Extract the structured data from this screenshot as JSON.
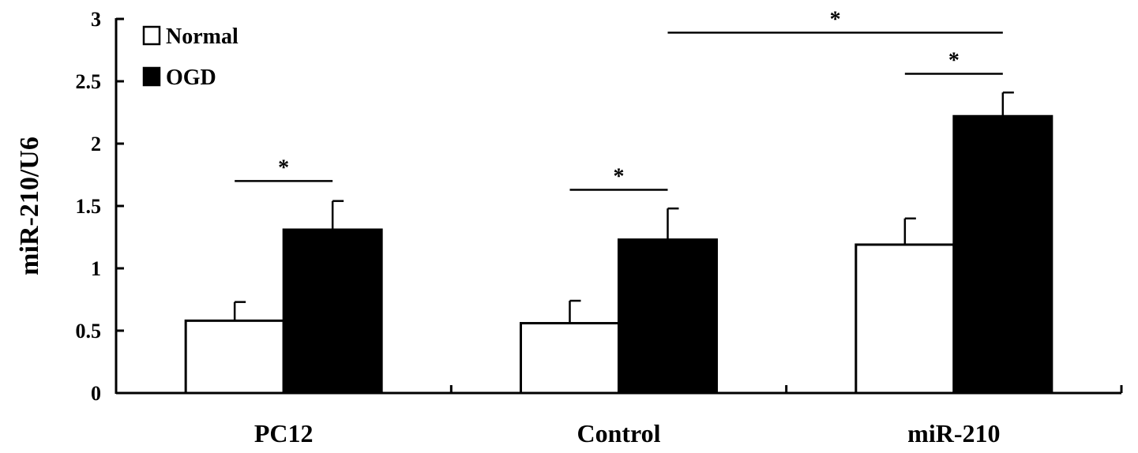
{
  "chart_data": {
    "type": "bar",
    "title": "",
    "xlabel": "",
    "ylabel": "miR-210/U6",
    "ylim": [
      0,
      3
    ],
    "yticks": [
      "0",
      "0.5",
      "1",
      "1.5",
      "2",
      "2.5",
      "3"
    ],
    "categories": [
      "PC12",
      "Control",
      "miR-210"
    ],
    "series": [
      {
        "name": "Normal",
        "values": [
          0.58,
          0.56,
          1.19
        ],
        "errors": [
          0.15,
          0.18,
          0.21
        ],
        "color": "#ffffff"
      },
      {
        "name": "OGD",
        "values": [
          1.31,
          1.23,
          2.22
        ],
        "errors": [
          0.23,
          0.25,
          0.19
        ],
        "color": "#000000"
      }
    ],
    "legend_position": "top-left",
    "grid": false,
    "significance": [
      {
        "label": "*",
        "from": "PC12 Normal",
        "to": "PC12 OGD",
        "y": 1.7
      },
      {
        "label": "*",
        "from": "Control Normal",
        "to": "Control OGD",
        "y": 1.63
      },
      {
        "label": "*",
        "from": "miR-210 Normal",
        "to": "miR-210 OGD",
        "y": 2.56
      },
      {
        "label": "*",
        "from": "Control OGD",
        "to": "miR-210 OGD",
        "y": 2.89
      }
    ]
  }
}
